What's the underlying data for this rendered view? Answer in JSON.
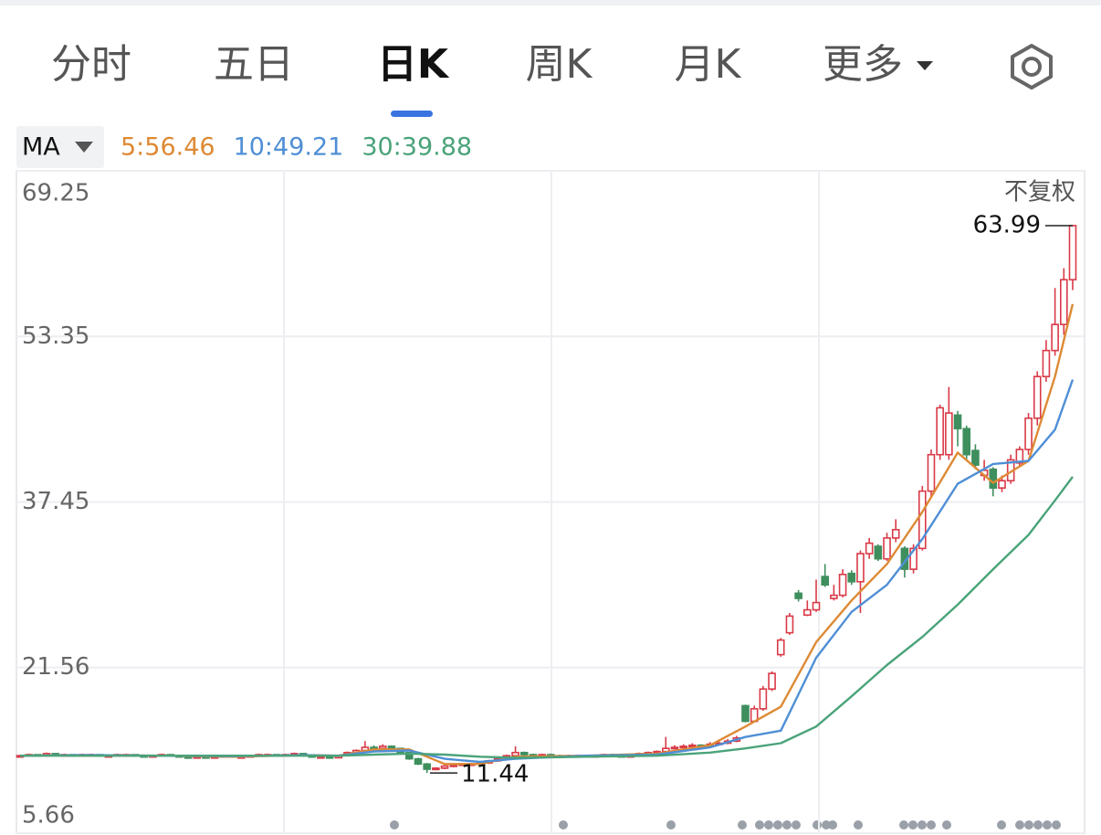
{
  "tabs": [
    "分时",
    "五日",
    "日K",
    "周K",
    "月K",
    "更多"
  ],
  "chart_data": {
    "type": "candlestick",
    "indicator": "MA",
    "ylim": [
      5.66,
      69.25
    ],
    "yticks": [
      69.25,
      53.35,
      37.45,
      21.56,
      5.66
    ],
    "grid": true,
    "up_color": "#d93a47",
    "down_color": "#3f8f5e",
    "adjustment": "不复权",
    "high_label": 63.99,
    "low_label": 11.44,
    "candles": [
      [
        13.0,
        13.2,
        13.0,
        13.1
      ],
      [
        13.1,
        13.3,
        13.1,
        13.2
      ],
      [
        13.2,
        13.2,
        13.0,
        13.1
      ],
      [
        13.1,
        13.4,
        13.1,
        13.3
      ],
      [
        13.3,
        13.3,
        13.1,
        13.2
      ],
      [
        13.2,
        13.3,
        13.1,
        13.2
      ],
      [
        13.2,
        13.2,
        13.0,
        13.1
      ],
      [
        13.1,
        13.3,
        13.1,
        13.2
      ],
      [
        13.2,
        13.3,
        13.1,
        13.2
      ],
      [
        13.2,
        13.2,
        13.0,
        13.1
      ],
      [
        13.1,
        13.2,
        13.0,
        13.1
      ],
      [
        13.1,
        13.3,
        13.1,
        13.2
      ],
      [
        13.2,
        13.3,
        13.1,
        13.2
      ],
      [
        13.2,
        13.2,
        13.0,
        13.1
      ],
      [
        13.1,
        13.1,
        12.9,
        13.0
      ],
      [
        13.0,
        13.2,
        13.0,
        13.1
      ],
      [
        13.1,
        13.3,
        13.1,
        13.2
      ],
      [
        13.2,
        13.2,
        13.0,
        13.1
      ],
      [
        13.1,
        13.1,
        12.9,
        13.0
      ],
      [
        13.0,
        13.0,
        12.8,
        12.9
      ],
      [
        12.9,
        13.1,
        12.9,
        13.0
      ],
      [
        13.0,
        13.0,
        12.8,
        12.9
      ],
      [
        12.9,
        13.1,
        12.9,
        13.0
      ],
      [
        13.0,
        13.2,
        13.0,
        13.1
      ],
      [
        13.1,
        13.1,
        12.9,
        13.0
      ],
      [
        13.0,
        13.1,
        12.9,
        13.0
      ],
      [
        13.0,
        13.2,
        13.0,
        13.1
      ],
      [
        13.1,
        13.3,
        13.1,
        13.2
      ],
      [
        13.2,
        13.3,
        13.1,
        13.2
      ],
      [
        13.2,
        13.2,
        13.0,
        13.1
      ],
      [
        13.1,
        13.3,
        13.1,
        13.2
      ],
      [
        13.2,
        13.4,
        13.2,
        13.3
      ],
      [
        13.3,
        13.3,
        13.0,
        13.1
      ],
      [
        13.1,
        13.1,
        12.9,
        13.0
      ],
      [
        13.0,
        13.1,
        12.9,
        13.0
      ],
      [
        13.0,
        13.0,
        12.8,
        12.9
      ],
      [
        12.9,
        13.2,
        12.9,
        13.1
      ],
      [
        13.1,
        13.5,
        13.1,
        13.4
      ],
      [
        13.4,
        13.7,
        13.4,
        13.6
      ],
      [
        13.6,
        14.5,
        13.6,
        13.9
      ],
      [
        13.9,
        14.1,
        13.7,
        13.8
      ],
      [
        13.8,
        14.2,
        13.8,
        14.0
      ],
      [
        14.0,
        14.1,
        13.7,
        13.8
      ],
      [
        13.8,
        13.8,
        13.3,
        13.4
      ],
      [
        13.4,
        13.4,
        12.7,
        12.8
      ],
      [
        12.8,
        12.9,
        12.2,
        12.3
      ],
      [
        12.3,
        12.4,
        11.44,
        11.8
      ],
      [
        11.8,
        12.0,
        11.7,
        11.9
      ],
      [
        11.9,
        12.2,
        11.8,
        12.1
      ],
      [
        12.1,
        12.3,
        12.0,
        12.2
      ],
      [
        12.2,
        12.4,
        12.1,
        12.3
      ],
      [
        12.3,
        12.4,
        12.2,
        12.3
      ],
      [
        12.3,
        12.5,
        12.2,
        12.4
      ],
      [
        12.4,
        12.7,
        12.3,
        12.6
      ],
      [
        12.6,
        12.9,
        12.5,
        12.8
      ],
      [
        12.8,
        13.2,
        12.7,
        13.1
      ],
      [
        13.1,
        14.0,
        13.0,
        13.4
      ],
      [
        13.4,
        13.5,
        13.1,
        13.2
      ],
      [
        13.2,
        13.3,
        13.0,
        13.1
      ],
      [
        13.1,
        13.3,
        13.0,
        13.2
      ],
      [
        13.2,
        13.3,
        13.0,
        13.1
      ],
      [
        13.1,
        13.2,
        12.9,
        13.0
      ],
      [
        13.0,
        13.2,
        12.9,
        13.1
      ],
      [
        13.1,
        13.2,
        13.0,
        13.1
      ],
      [
        13.1,
        13.2,
        12.9,
        13.0
      ],
      [
        13.0,
        13.2,
        12.9,
        13.1
      ],
      [
        13.1,
        13.3,
        13.0,
        13.2
      ],
      [
        13.2,
        13.3,
        13.0,
        13.1
      ],
      [
        13.1,
        13.2,
        12.9,
        13.0
      ],
      [
        13.0,
        13.2,
        12.9,
        13.1
      ],
      [
        13.1,
        13.4,
        13.0,
        13.3
      ],
      [
        13.3,
        13.5,
        13.2,
        13.4
      ],
      [
        13.4,
        13.6,
        13.3,
        13.5
      ],
      [
        13.5,
        14.9,
        13.4,
        13.8
      ],
      [
        13.8,
        14.1,
        13.7,
        13.9
      ],
      [
        13.9,
        14.2,
        13.8,
        14.0
      ],
      [
        14.0,
        14.3,
        13.9,
        14.1
      ],
      [
        14.1,
        14.2,
        13.9,
        14.0
      ],
      [
        14.0,
        14.4,
        13.9,
        14.2
      ],
      [
        14.2,
        14.5,
        14.1,
        14.3
      ],
      [
        14.3,
        14.7,
        14.2,
        14.5
      ],
      [
        14.5,
        15.0,
        14.4,
        14.8
      ],
      [
        17.9,
        18.0,
        16.3,
        16.4
      ],
      [
        16.4,
        17.9,
        16.3,
        17.6
      ],
      [
        17.6,
        19.8,
        17.4,
        19.5
      ],
      [
        19.5,
        21.2,
        19.3,
        21.0
      ],
      [
        22.8,
        24.4,
        22.6,
        24.2
      ],
      [
        24.9,
        26.8,
        24.7,
        26.5
      ],
      [
        28.7,
        29.0,
        27.9,
        28.2
      ],
      [
        26.6,
        28.0,
        26.5,
        27.1
      ],
      [
        27.1,
        30.0,
        26.9,
        27.8
      ],
      [
        30.3,
        31.5,
        29.3,
        29.5
      ],
      [
        28.2,
        29.5,
        28.0,
        28.5
      ],
      [
        28.5,
        31.0,
        28.3,
        30.5
      ],
      [
        30.6,
        30.9,
        29.5,
        29.8
      ],
      [
        29.8,
        32.8,
        26.8,
        32.5
      ],
      [
        32.5,
        34.0,
        32.0,
        33.5
      ],
      [
        33.2,
        33.4,
        31.8,
        32.0
      ],
      [
        32.0,
        34.5,
        31.8,
        34.0
      ],
      [
        34.0,
        35.8,
        33.6,
        34.8
      ],
      [
        33.0,
        33.2,
        30.2,
        31.0
      ],
      [
        31.0,
        33.4,
        30.6,
        33.0
      ],
      [
        33.0,
        39.0,
        32.8,
        38.5
      ],
      [
        38.5,
        42.5,
        38.0,
        42.0
      ],
      [
        42.0,
        46.8,
        41.5,
        46.5
      ],
      [
        42.0,
        48.5,
        41.5,
        46.0
      ],
      [
        45.8,
        46.2,
        42.8,
        44.5
      ],
      [
        44.5,
        44.8,
        41.5,
        42.0
      ],
      [
        42.4,
        43.0,
        40.6,
        41.0
      ],
      [
        40.0,
        41.5,
        39.5,
        40.5
      ],
      [
        40.6,
        40.8,
        38.0,
        38.8
      ],
      [
        38.8,
        40.0,
        38.4,
        39.5
      ],
      [
        39.5,
        42.0,
        39.2,
        41.5
      ],
      [
        41.2,
        42.8,
        40.8,
        42.5
      ],
      [
        42.5,
        46.0,
        42.0,
        45.5
      ],
      [
        45.5,
        50.0,
        44.8,
        49.5
      ],
      [
        49.5,
        53.0,
        49.0,
        52.0
      ],
      [
        52.0,
        58.0,
        51.5,
        54.5
      ],
      [
        54.5,
        59.9,
        53.5,
        58.8
      ],
      [
        58.8,
        63.99,
        57.8,
        63.99
      ]
    ],
    "ma_index": [
      0,
      8,
      16,
      24,
      32,
      36,
      40,
      44,
      48,
      52,
      56,
      64,
      72,
      78,
      82,
      86,
      90,
      94,
      98,
      102,
      106,
      110,
      114,
      117,
      119
    ],
    "series": [
      {
        "name": "5:56.46",
        "color": "#dd8a35",
        "values": [
          13.1,
          13.15,
          13.1,
          13.0,
          13.15,
          13.1,
          13.7,
          13.7,
          12.3,
          12.3,
          13.0,
          13.1,
          13.3,
          14.1,
          15.9,
          17.8,
          24.0,
          28.0,
          31.5,
          36.5,
          42.2,
          39.3,
          41.4,
          49.5,
          56.46
        ]
      },
      {
        "name": "10:49.21",
        "color": "#4f8fd6",
        "values": [
          13.1,
          13.15,
          13.1,
          13.05,
          13.15,
          13.1,
          13.5,
          13.6,
          12.8,
          12.5,
          12.8,
          13.1,
          13.2,
          13.9,
          14.9,
          15.5,
          22.5,
          26.9,
          29.5,
          33.9,
          39.2,
          41.1,
          41.4,
          44.4,
          49.21
        ]
      },
      {
        "name": "30:39.88",
        "color": "#4aa37a",
        "values": [
          13.1,
          13.1,
          13.1,
          13.1,
          13.1,
          13.1,
          13.2,
          13.3,
          13.2,
          13.0,
          12.9,
          13.0,
          13.1,
          13.4,
          13.8,
          14.3,
          15.9,
          18.8,
          21.8,
          24.5,
          27.6,
          31.0,
          34.3,
          37.6,
          39.88
        ]
      }
    ]
  }
}
